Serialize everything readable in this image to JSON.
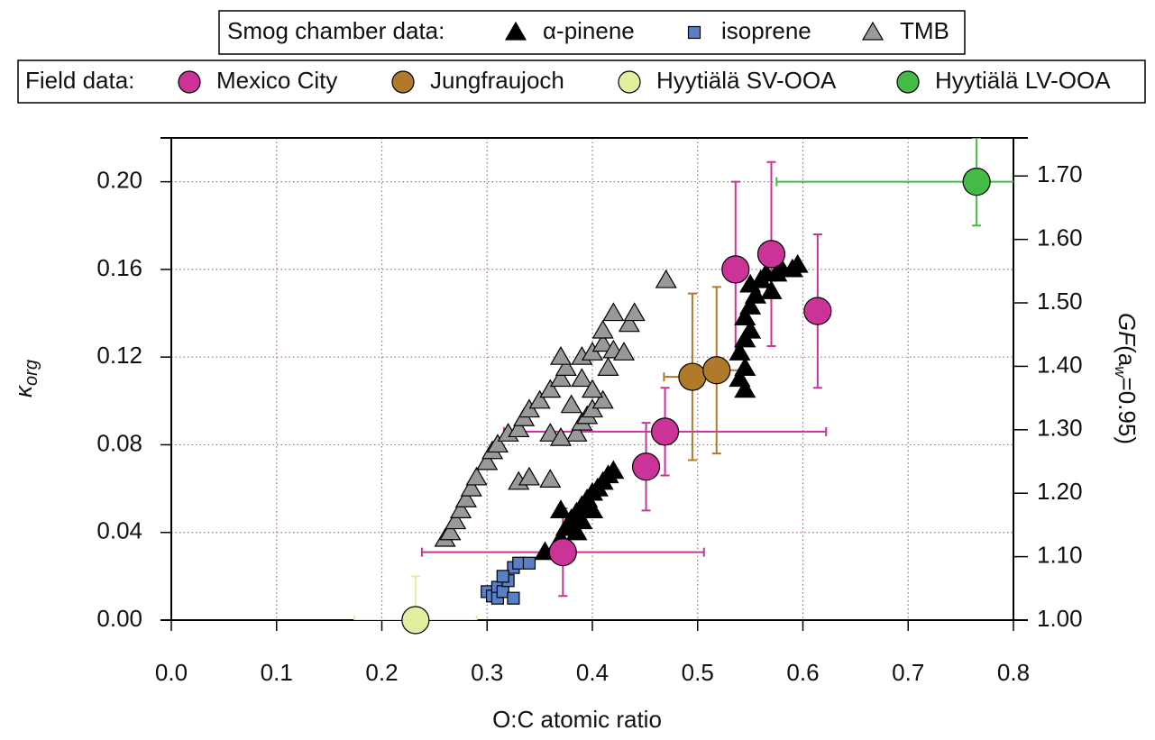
{
  "chart_data": {
    "type": "scatter",
    "x_label": "O:C atomic ratio",
    "y_label": "κ",
    "y_label_sub": "org",
    "y2_label_parts": [
      "GF",
      "(a",
      "w",
      "=0.95)"
    ],
    "xlim": [
      0,
      0.8
    ],
    "xticks": [
      {
        "value": 0,
        "label": "0.0"
      },
      0.1,
      0.2,
      0.3,
      0.4,
      0.5,
      0.6,
      0.7,
      0.8
    ],
    "ylim": [
      0,
      0.22
    ],
    "yticks": [
      {
        "value": 0,
        "label": "0.00"
      },
      0.04,
      0.08,
      0.12,
      0.16,
      {
        "value": 0.2,
        "label": "0.20"
      }
    ],
    "y2lim": [
      1.0,
      1.76
    ],
    "y2ticks": [
      {
        "value": 1.0,
        "label": "1.00"
      },
      {
        "value": 1.1,
        "label": "1.10"
      },
      {
        "value": 1.2,
        "label": "1.20"
      },
      {
        "value": 1.3,
        "label": "1.30"
      },
      {
        "value": 1.4,
        "label": "1.40"
      },
      {
        "value": 1.5,
        "label": "1.50"
      },
      {
        "value": 1.6,
        "label": "1.60"
      },
      {
        "value": 1.7,
        "label": "1.70"
      }
    ],
    "grid": true,
    "groups": [
      {
        "title": "Smog chamber data:",
        "series": [
          {
            "name": "α-pinene",
            "color": "#000000",
            "marker": "triangle",
            "x": [
              0.355,
              0.365,
              0.37,
              0.375,
              0.38,
              0.37,
              0.385,
              0.39,
              0.395,
              0.4,
              0.405,
              0.41,
              0.415,
              0.42,
              0.385,
              0.39,
              0.4,
              0.545,
              0.54,
              0.545,
              0.54,
              0.545,
              0.55,
              0.545,
              0.55,
              0.555,
              0.55,
              0.56,
              0.565,
              0.57,
              0.575,
              0.58,
              0.595,
              0.59
            ],
            "y": [
              0.031,
              0.033,
              0.037,
              0.042,
              0.046,
              0.05,
              0.049,
              0.052,
              0.055,
              0.058,
              0.06,
              0.063,
              0.066,
              0.068,
              0.04,
              0.045,
              0.05,
              0.105,
              0.11,
              0.115,
              0.122,
              0.128,
              0.132,
              0.138,
              0.143,
              0.148,
              0.153,
              0.155,
              0.158,
              0.15,
              0.158,
              0.16,
              0.162,
              0.16
            ]
          },
          {
            "name": "isoprene",
            "color": "#5b7fc4",
            "marker": "square",
            "x": [
              0.3,
              0.305,
              0.31,
              0.31,
              0.315,
              0.32,
              0.325,
              0.33,
              0.34,
              0.325,
              0.315
            ],
            "y": [
              0.013,
              0.011,
              0.015,
              0.01,
              0.013,
              0.018,
              0.024,
              0.026,
              0.026,
              0.01,
              0.02
            ]
          },
          {
            "name": "TMB",
            "color": "#999999",
            "marker": "triangle",
            "x": [
              0.26,
              0.265,
              0.27,
              0.275,
              0.28,
              0.285,
              0.29,
              0.3,
              0.305,
              0.31,
              0.32,
              0.33,
              0.335,
              0.34,
              0.35,
              0.36,
              0.37,
              0.375,
              0.37,
              0.39,
              0.4,
              0.41,
              0.41,
              0.42,
              0.435,
              0.44,
              0.47,
              0.42,
              0.43,
              0.39,
              0.385,
              0.39,
              0.395,
              0.4,
              0.41,
              0.4,
              0.38,
              0.36,
              0.37,
              0.36,
              0.33,
              0.34,
              0.415
            ],
            "y": [
              0.037,
              0.04,
              0.045,
              0.05,
              0.055,
              0.06,
              0.065,
              0.072,
              0.077,
              0.08,
              0.085,
              0.087,
              0.092,
              0.096,
              0.1,
              0.105,
              0.11,
              0.115,
              0.12,
              0.12,
              0.122,
              0.126,
              0.132,
              0.14,
              0.135,
              0.14,
              0.155,
              0.123,
              0.122,
              0.11,
              0.085,
              0.09,
              0.093,
              0.096,
              0.1,
              0.105,
              0.098,
              0.085,
              0.083,
              0.064,
              0.063,
              0.065,
              0.115
            ]
          }
        ]
      },
      {
        "title": "Field data:",
        "series": [
          {
            "name": "Mexico City",
            "color": "#cc3399",
            "marker": "circle",
            "x": [
              0.372,
              0.451,
              0.469,
              0.536,
              0.57,
              0.614
            ],
            "y": [
              0.031,
              0.07,
              0.086,
              0.16,
              0.167,
              0.141
            ],
            "yerr": [
              0.02,
              0.02,
              0.02,
              0.04,
              0.042,
              0.035
            ],
            "xerr": [
              0.134,
              null,
              0.153,
              null,
              null,
              null
            ]
          },
          {
            "name": "Jungfraujoch",
            "color": "#b07a2a",
            "marker": "circle",
            "x": [
              0.495,
              0.518
            ],
            "y": [
              0.111,
              0.114
            ],
            "yerr": [
              0.038,
              0.038
            ],
            "xerr": [
              0.027,
              0.028
            ]
          },
          {
            "name": "Hyytiälä SV-OOA",
            "color": "#e4eea0",
            "marker": "circle",
            "x": [
              0.232
            ],
            "y": [
              0
            ],
            "yerr": [
              0.02
            ],
            "xerr": [
              0.058
            ]
          },
          {
            "name": "Hyytiälä LV-OOA",
            "color": "#44bb44",
            "marker": "circle",
            "x": [
              0.765
            ],
            "y": [
              0.2
            ],
            "yerr": [
              0.02
            ],
            "xerr": [
              0.19
            ]
          }
        ]
      }
    ]
  }
}
